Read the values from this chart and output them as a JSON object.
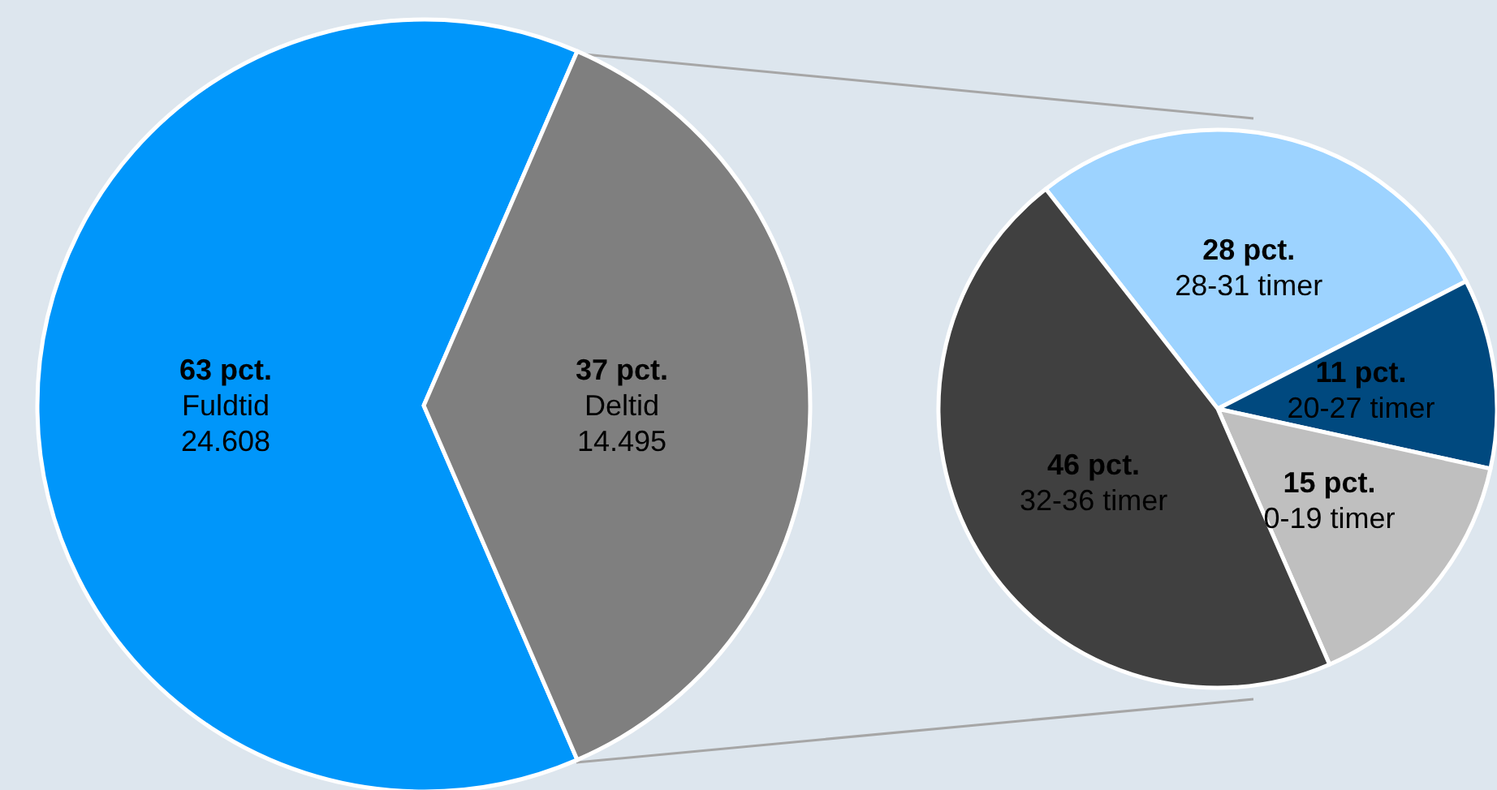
{
  "chart_data": [
    {
      "type": "pie",
      "categories": [
        "Fuldtid",
        "Deltid"
      ],
      "values": [
        63,
        37
      ],
      "value_labels": [
        "63 pct.",
        "37 pct."
      ],
      "colors": [
        "#0096fa",
        "#7f7f7f"
      ],
      "annotations": [
        "24.608",
        "14.495"
      ]
    },
    {
      "type": "pie",
      "categories": [
        "28-31 timer",
        "20-27 timer",
        "0-19 timer",
        "32-36 timer"
      ],
      "values": [
        28,
        11,
        15,
        46
      ],
      "value_labels": [
        "28 pct.",
        "11 pct.",
        "15 pct.",
        "46 pct."
      ],
      "colors": [
        "#9dd3ff",
        "#00497f",
        "#bfbfbf",
        "#404040"
      ]
    }
  ]
}
